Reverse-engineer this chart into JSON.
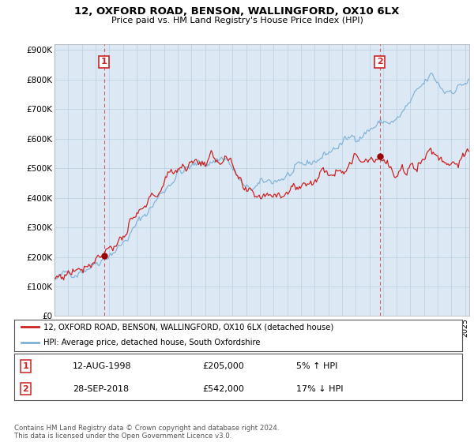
{
  "title": "12, OXFORD ROAD, BENSON, WALLINGFORD, OX10 6LX",
  "subtitle": "Price paid vs. HM Land Registry's House Price Index (HPI)",
  "legend_line1": "12, OXFORD ROAD, BENSON, WALLINGFORD, OX10 6LX (detached house)",
  "legend_line2": "HPI: Average price, detached house, South Oxfordshire",
  "sale1_date": "12-AUG-1998",
  "sale1_price": "£205,000",
  "sale1_hpi": "5% ↑ HPI",
  "sale2_date": "28-SEP-2018",
  "sale2_price": "£542,000",
  "sale2_hpi": "17% ↓ HPI",
  "footer": "Contains HM Land Registry data © Crown copyright and database right 2024.\nThis data is licensed under the Open Government Licence v3.0.",
  "sale1_year": 1998.62,
  "sale1_value": 205000,
  "sale2_year": 2018.75,
  "sale2_value": 542000,
  "hpi_color": "#7bafd4",
  "property_color": "#cc2222",
  "vline_color": "#cc2222",
  "dot_color": "#990000",
  "chart_bg": "#dce9f5",
  "background_color": "#ffffff",
  "ylim_max": 900000,
  "xlim_start": 1995.0,
  "xlim_end": 2025.3
}
